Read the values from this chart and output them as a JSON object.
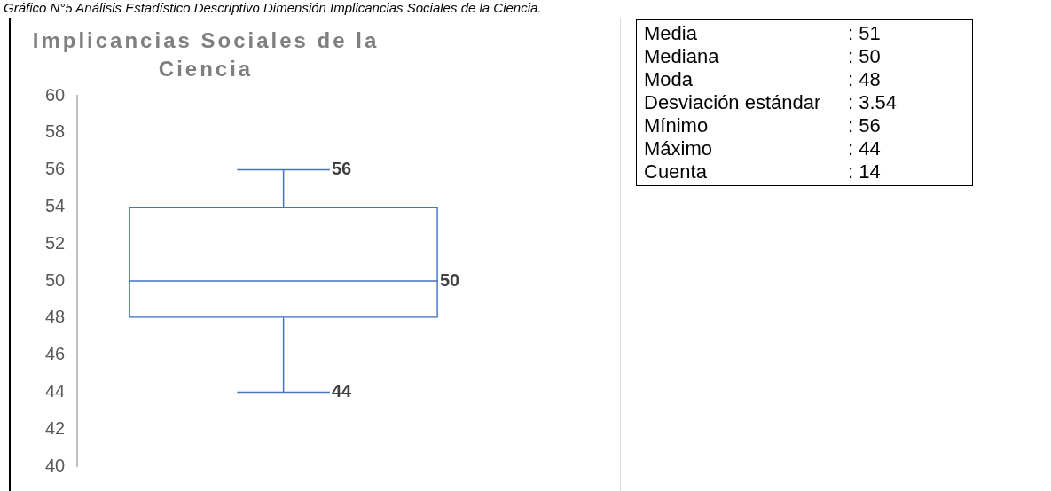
{
  "chart_data": [
    {
      "type": "box",
      "title": "Implicancias Sociales de la Ciencia",
      "categories": [
        null
      ],
      "color": "#4472c4",
      "boxes": [
        {
          "low": 44,
          "q1": 48,
          "median": 50,
          "q3": 54,
          "high": 56
        }
      ],
      "ylim": [
        40,
        60
      ],
      "yticks": [
        40,
        42,
        44,
        46,
        48,
        50,
        52,
        54,
        56,
        58,
        60
      ],
      "grid": false,
      "legend": false,
      "annotations": [
        "Gráfico N°5 Análisis Estadístico Descriptivo Dimensión Implicancias Sociales de la Ciencia.",
        "56",
        "50",
        "44"
      ]
    },
    {
      "type": "other",
      "annotations": [
        "Media",
        ": 51",
        "Mediana",
        ": 50",
        "Moda",
        ": 48",
        "Desviación estándar",
        ": 3.54",
        "Mínimo",
        ": 56",
        "Máximo",
        ": 44",
        "Cuenta",
        ": 14"
      ]
    }
  ]
}
